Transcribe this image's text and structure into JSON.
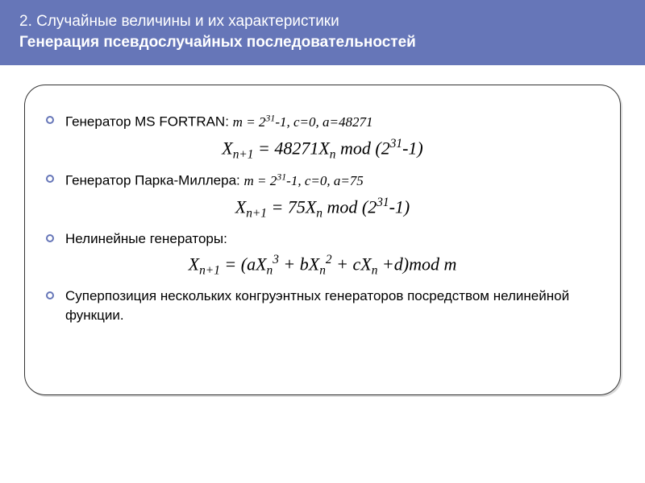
{
  "header": {
    "line1": "2. Случайные величины и их характеристики",
    "line2": "Генерация псевдослучайных последовательностей",
    "background_color": "#6676b8",
    "text_color": "#ffffff",
    "fontsize": 19
  },
  "content": {
    "frame": {
      "border_color": "#333333",
      "border_radius": 26,
      "shadow_color": "rgba(0,0,0,0.15)"
    },
    "bullet_style": {
      "ring_color": "#6676b8",
      "diameter": 10
    },
    "items": [
      {
        "type": "bullet",
        "label": "Генератор MS FORTRAN:",
        "params_html": "m = 2<sup>31</sup>-1, c=0, a=48271"
      },
      {
        "type": "formula",
        "html": "X<sub>n+1</sub> = 48271X<sub>n</sub> mod (2<sup>31</sup>-1)"
      },
      {
        "type": "bullet",
        "label": "Генератор Парка-Миллера:",
        "params_html": "m = 2<sup>31</sup>-1, c=0, a=75"
      },
      {
        "type": "formula",
        "html": "X<sub>n+1</sub> = 75X<sub>n</sub> mod (2<sup>31</sup>-1)"
      },
      {
        "type": "bullet",
        "label": "Нелинейные генераторы:",
        "params_html": ""
      },
      {
        "type": "formula",
        "html": "X<sub>n+1</sub> = (aX<sub>n</sub><sup>3</sup> + bX<sub>n</sub><sup>2</sup> + cX<sub>n</sub> +d)mod m"
      },
      {
        "type": "bullet",
        "label": "Суперпозиция нескольких конгруэнтных генераторов посредством нелинейной функции.",
        "params_html": ""
      }
    ],
    "body_fontsize": 17,
    "formula_fontsize": 22
  },
  "colors": {
    "page_background": "#ffffff",
    "text": "#000000"
  }
}
